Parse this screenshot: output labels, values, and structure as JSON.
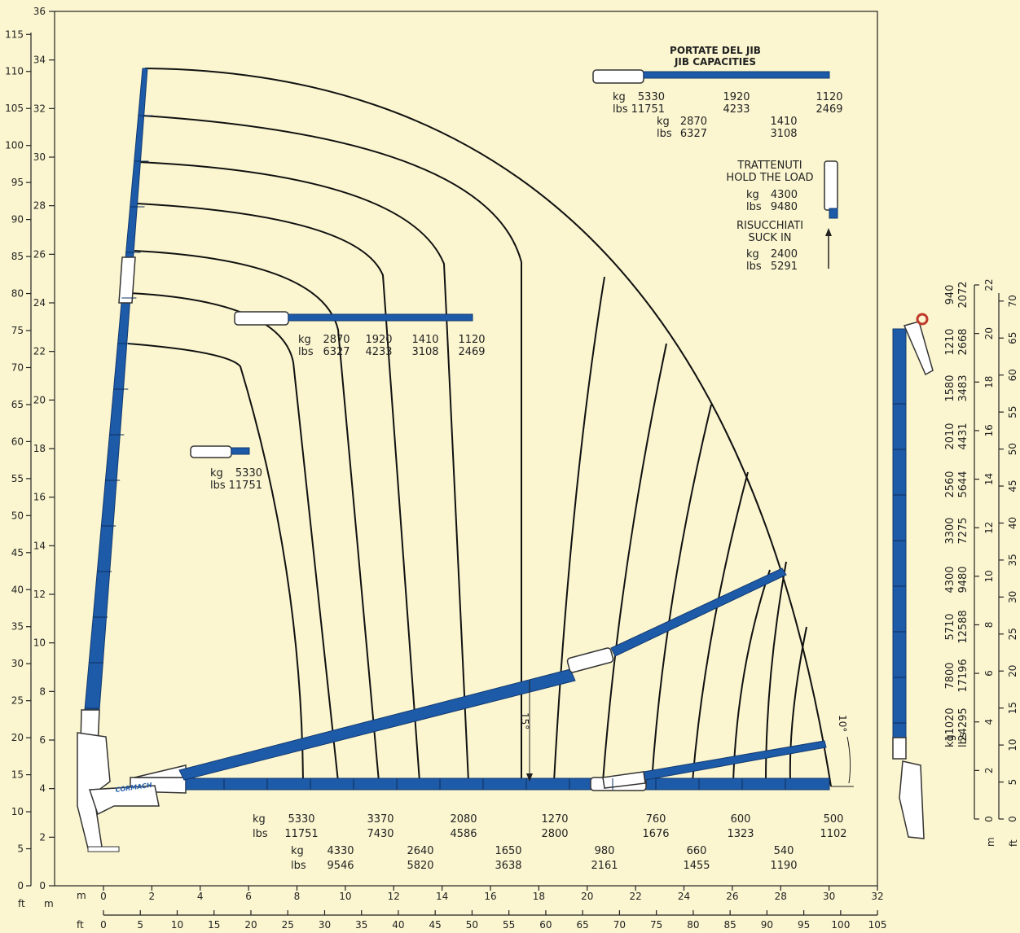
{
  "axes": {
    "left_m_label": "m",
    "left_ft_label": "ft",
    "bottom_m_label": "m",
    "bottom_ft_label": "ft",
    "y_m_ticks": [
      "0",
      "2",
      "4",
      "6",
      "8",
      "10",
      "12",
      "14",
      "16",
      "18",
      "20",
      "22",
      "24",
      "26",
      "28",
      "30",
      "32",
      "34",
      "36"
    ],
    "y_ft_ticks": [
      "0",
      "5",
      "10",
      "15",
      "20",
      "25",
      "30",
      "35",
      "40",
      "45",
      "50",
      "55",
      "60",
      "65",
      "70",
      "75",
      "80",
      "85",
      "90",
      "95",
      "100",
      "105",
      "110",
      "115"
    ],
    "x_m_ticks": [
      "0",
      "2",
      "4",
      "6",
      "8",
      "10",
      "12",
      "14",
      "16",
      "18",
      "20",
      "22",
      "24",
      "26",
      "28",
      "30",
      "32"
    ],
    "x_ft_ticks": [
      "0",
      "5",
      "10",
      "15",
      "20",
      "25",
      "30",
      "35",
      "40",
      "45",
      "50",
      "55",
      "60",
      "65",
      "70",
      "75",
      "80",
      "85",
      "90",
      "95",
      "100",
      "105"
    ]
  },
  "jib_capacities": {
    "title_it": "PORTATE DEL JIB",
    "title_en": "JIB CAPACITIES",
    "row1": [
      [
        "kg",
        "5330"
      ],
      [
        "lbs",
        "11751"
      ],
      [
        "1920"
      ],
      [
        "4233"
      ],
      [
        "1120"
      ],
      [
        "2469"
      ]
    ],
    "kg": "kg",
    "lbs": "lbs",
    "r1_kg": "5330",
    "r1_lbs": "11751",
    "r1_v2_kg": "1920",
    "r1_v2_lbs": "4233",
    "r1_v3_kg": "1120",
    "r1_v3_lbs": "2469",
    "r2_kg": "2870",
    "r2_lbs": "6327",
    "r2_v2_kg": "1410",
    "r2_v2_lbs": "3108"
  },
  "hold": {
    "it": "TRATTENUTI",
    "en": "HOLD THE LOAD",
    "kg": "4300",
    "lbs": "9480"
  },
  "suck": {
    "it": "RISUCCHIATI",
    "en": "SUCK IN",
    "kg": "2400",
    "lbs": "5291"
  },
  "mid_jib": {
    "kg": "kg",
    "lbs": "lbs",
    "values_kg": [
      "2870",
      "1920",
      "1410",
      "1120"
    ],
    "values_lbs": [
      "6327",
      "4233",
      "3108",
      "2469"
    ]
  },
  "small_jib": {
    "kg": "5330",
    "lbs": "11751"
  },
  "angles": {
    "a15": "15°",
    "a10": "10°"
  },
  "logo": "CORMACH",
  "bottom_caps": {
    "row1_kg": [
      "5330",
      "3370",
      "2080",
      "1270",
      "760",
      "600",
      "500"
    ],
    "row1_lbs": [
      "11751",
      "7430",
      "4586",
      "2800",
      "1676",
      "1323",
      "1102"
    ],
    "row2_kg": [
      "4330",
      "2640",
      "1650",
      "980",
      "660",
      "540"
    ],
    "row2_lbs": [
      "9546",
      "5820",
      "3638",
      "2161",
      "1455",
      "1190"
    ]
  },
  "side_chart": {
    "kg": "kg",
    "lbs": "lbs",
    "kg_values": [
      "11020",
      "7800",
      "5710",
      "4300",
      "3300",
      "2560",
      "2010",
      "1580",
      "1210",
      "940"
    ],
    "lbs_values": [
      "24295",
      "17196",
      "12588",
      "9480",
      "7275",
      "5644",
      "4431",
      "3483",
      "2668",
      "2072"
    ],
    "m_ticks": [
      "0",
      "2",
      "4",
      "6",
      "8",
      "10",
      "12",
      "14",
      "16",
      "18",
      "20",
      "22"
    ],
    "ft_ticks": [
      "0",
      "5",
      "10",
      "15",
      "20",
      "25",
      "30",
      "35",
      "40",
      "45",
      "50",
      "55",
      "60",
      "65",
      "70"
    ],
    "m_label": "m",
    "ft_label": "ft"
  },
  "colors": {
    "background": "#fbf6d0",
    "boom": "#1d5aa8",
    "line": "#111111"
  }
}
